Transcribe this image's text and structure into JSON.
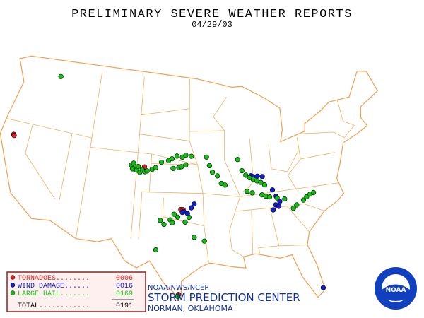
{
  "title": "PRELIMINARY SEVERE WEATHER REPORTS",
  "date": "04/29/03",
  "report_types": [
    {
      "name": "TORNADOES........",
      "count": {
        "value": 6,
        "label": "0006"
      },
      "color": "#e02020",
      "points": [
        [
          -122.3,
          40.6
        ],
        [
          -122.2,
          40.5
        ],
        [
          -97.6,
          35.3
        ],
        [
          -97.3,
          35.3
        ],
        [
          -97.7,
          26.4
        ],
        [
          -102.9,
          39.6
        ]
      ]
    },
    {
      "name": "WIND DAMAGE......",
      "count": {
        "value": 16,
        "label": "0016"
      },
      "color": "#1020d0",
      "points": [
        [
          -97.2,
          35.1
        ],
        [
          -97.4,
          35.0
        ],
        [
          -96.2,
          35.5
        ],
        [
          -95.8,
          35.9
        ],
        [
          -96.7,
          34.9
        ],
        [
          -87.8,
          38.6
        ],
        [
          -87.5,
          38.5
        ],
        [
          -86.2,
          38.4
        ],
        [
          -85.0,
          36.9
        ],
        [
          -84.6,
          36.2
        ],
        [
          -84.2,
          35.6
        ],
        [
          -84.8,
          35.3
        ],
        [
          -84.4,
          35.1
        ],
        [
          -85.2,
          34.8
        ],
        [
          -80.3,
          26.0
        ],
        [
          -86.9,
          38.5
        ]
      ]
    },
    {
      "name": "LARGE HAIL.......",
      "count": {
        "value": 169,
        "label": "0169"
      },
      "color": "#10c010",
      "points": [
        [
          -117.5,
          47.7
        ],
        [
          -104.8,
          39.7
        ],
        [
          -104.5,
          39.9
        ],
        [
          -104.3,
          39.5
        ],
        [
          -104.0,
          39.2
        ],
        [
          -103.8,
          39.6
        ],
        [
          -103.5,
          39.0
        ],
        [
          -104.6,
          39.3
        ],
        [
          -103.2,
          39.3
        ],
        [
          -102.8,
          39.1
        ],
        [
          -102.5,
          39.2
        ],
        [
          -101.8,
          39.4
        ],
        [
          -101.3,
          39.6
        ],
        [
          -100.5,
          40.2
        ],
        [
          -99.5,
          40.4
        ],
        [
          -99.0,
          40.6
        ],
        [
          -98.3,
          40.9
        ],
        [
          -97.5,
          40.8
        ],
        [
          -97.0,
          41.0
        ],
        [
          -96.2,
          40.9
        ],
        [
          -98.8,
          39.6
        ],
        [
          -98.0,
          39.7
        ],
        [
          -97.6,
          39.8
        ],
        [
          -97.0,
          40.0
        ],
        [
          -94.0,
          40.8
        ],
        [
          -93.6,
          39.9
        ],
        [
          -93.2,
          39.2
        ],
        [
          -92.5,
          38.8
        ],
        [
          -92.0,
          38.0
        ],
        [
          -91.5,
          37.8
        ],
        [
          -89.5,
          40.4
        ],
        [
          -89.0,
          39.2
        ],
        [
          -88.5,
          38.7
        ],
        [
          -88.0,
          38.4
        ],
        [
          -87.5,
          38.2
        ],
        [
          -87.0,
          38.0
        ],
        [
          -86.5,
          37.8
        ],
        [
          -86.0,
          37.5
        ],
        [
          -88.5,
          37.0
        ],
        [
          -87.8,
          36.8
        ],
        [
          -86.5,
          36.5
        ],
        [
          -86.0,
          36.3
        ],
        [
          -85.5,
          36.2
        ],
        [
          -84.5,
          36.0
        ],
        [
          -83.5,
          35.8
        ],
        [
          -80.5,
          35.7
        ],
        [
          -80.0,
          35.9
        ],
        [
          -79.5,
          36.0
        ],
        [
          -81.0,
          35.4
        ],
        [
          -82.0,
          35.0
        ],
        [
          -82.5,
          34.7
        ],
        [
          -98.5,
          34.8
        ],
        [
          -99.0,
          34.2
        ],
        [
          -98.7,
          33.9
        ],
        [
          -98.0,
          34.5
        ],
        [
          -97.0,
          34.0
        ],
        [
          -96.5,
          34.5
        ],
        [
          -95.8,
          32.4
        ],
        [
          -94.5,
          32.0
        ],
        [
          -100.3,
          34.1
        ],
        [
          -99.8,
          33.7
        ],
        [
          -100.7,
          31.0
        ],
        [
          -97.8,
          26.2
        ]
      ]
    }
  ],
  "total": {
    "name": "TOTAL............",
    "count": {
      "value": 191,
      "label": "0191"
    }
  },
  "footer": {
    "agency": "NOAA/NWS/NCEP",
    "center": "STORM PREDICTION CENTER",
    "location": "NORMAN, OKLAHOMA"
  },
  "logo_text": "NOAA"
}
